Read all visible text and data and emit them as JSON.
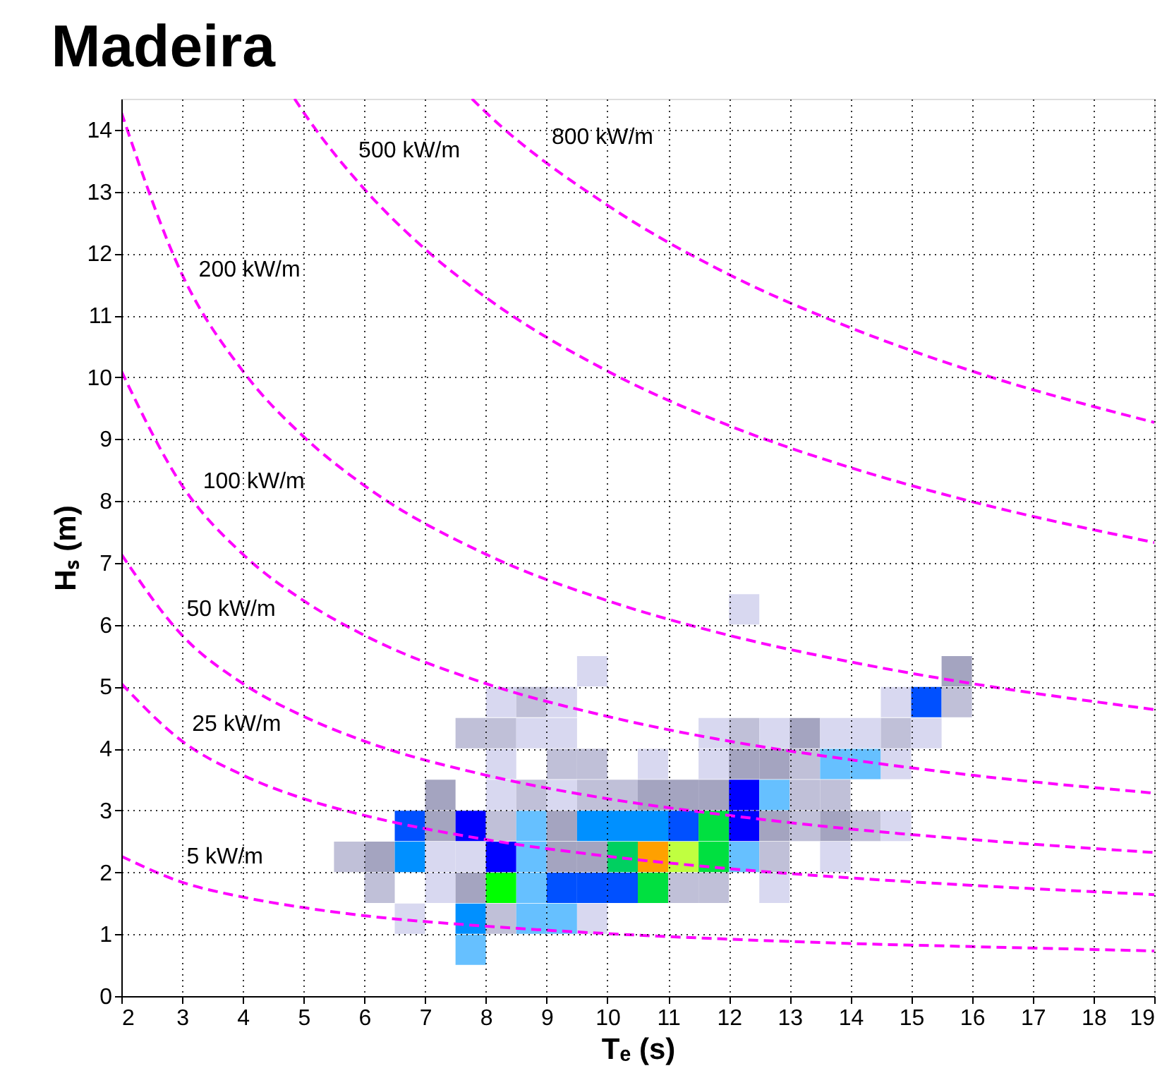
{
  "chart_data": {
    "type": "scatter",
    "title": "Madeira",
    "xlabel": "Tₑ (s)",
    "ylabel": "Hₛ (m)",
    "xlim": [
      2,
      19
    ],
    "ylim": [
      0,
      14.5
    ],
    "xticks": [
      2,
      3,
      4,
      5,
      6,
      7,
      8,
      9,
      10,
      11,
      12,
      13,
      14,
      15,
      16,
      17,
      18,
      19
    ],
    "yticks": [
      0,
      1,
      2,
      3,
      4,
      5,
      6,
      7,
      8,
      9,
      10,
      11,
      12,
      13,
      14
    ],
    "grid": true,
    "annotations": [
      {
        "text": "800 kW/m",
        "x": 8.99,
        "y": 13.47
      },
      {
        "text": "500 kW/m",
        "x": 5.81,
        "y": 13.26
      },
      {
        "text": "200 kW/m",
        "x": 3.18,
        "y": 11.33
      },
      {
        "text": "100 kW/m",
        "x": 3.25,
        "y": 7.91
      },
      {
        "text": "50 kW/m",
        "x": 2.98,
        "y": 5.85
      },
      {
        "text": "25 kW/m",
        "x": 3.07,
        "y": 3.99
      },
      {
        "text": "5 kW/m",
        "x": 2.98,
        "y": 1.85
      }
    ],
    "series": [
      {
        "type": "scatter",
        "marker": "square",
        "x": [
          12.25,
          9.75,
          15.75,
          8.25,
          8.75,
          9.25,
          14.75,
          15.25,
          15.75,
          7.75,
          8.25,
          8.75,
          9.25,
          11.75,
          12.25,
          12.75,
          13.25,
          13.75,
          14.25,
          14.75,
          15.25,
          8.25,
          9.25,
          9.75,
          10.75,
          11.75,
          12.25,
          12.75,
          13.25,
          13.75,
          14.25,
          14.75,
          7.25,
          8.25,
          8.75,
          9.25,
          9.75,
          10.25,
          10.75,
          11.25,
          11.75,
          12.25,
          12.75,
          13.25,
          13.75,
          6.75,
          7.25,
          7.75,
          8.25,
          8.75,
          9.25,
          9.75,
          10.25,
          10.75,
          11.25,
          11.75,
          12.25,
          12.75,
          13.25,
          13.75,
          14.25,
          14.75,
          5.75,
          6.25,
          6.75,
          7.25,
          7.75,
          8.25,
          8.75,
          9.25,
          9.75,
          10.25,
          10.75,
          11.25,
          11.75,
          12.25,
          12.75,
          13.75,
          6.25,
          7.25,
          7.75,
          8.25,
          8.75,
          9.25,
          9.75,
          10.25,
          10.75,
          11.25,
          11.75,
          12.75,
          6.75,
          7.75,
          8.25,
          8.75,
          9.25,
          9.75,
          7.75
        ],
        "values": [
          6.25,
          5.25,
          5.25,
          4.75,
          4.75,
          4.75,
          4.75,
          4.75,
          4.75,
          4.25,
          4.25,
          4.25,
          4.25,
          4.25,
          4.25,
          4.25,
          4.25,
          4.25,
          4.25,
          4.25,
          4.25,
          3.75,
          3.75,
          3.75,
          3.75,
          3.75,
          3.75,
          3.75,
          3.75,
          3.75,
          3.75,
          3.75,
          3.25,
          3.25,
          3.25,
          3.25,
          3.25,
          3.25,
          3.25,
          3.25,
          3.25,
          3.25,
          3.25,
          3.25,
          3.25,
          2.75,
          2.75,
          2.75,
          2.75,
          2.75,
          2.75,
          2.75,
          2.75,
          2.75,
          2.75,
          2.75,
          2.75,
          2.75,
          2.75,
          2.75,
          2.75,
          2.75,
          2.25,
          2.25,
          2.25,
          2.25,
          2.25,
          2.25,
          2.25,
          2.25,
          2.25,
          2.25,
          2.25,
          2.25,
          2.25,
          2.25,
          2.25,
          2.25,
          1.75,
          1.75,
          1.75,
          1.75,
          1.75,
          1.75,
          1.75,
          1.75,
          1.75,
          1.75,
          1.75,
          1.75,
          1.25,
          1.25,
          1.25,
          1.25,
          1.25,
          1.25,
          0.75
        ],
        "colors": [
          "#d8d8f0",
          "#d8d8f0",
          "#a4a4c0",
          "#d8d8f0",
          "#c0c0d8",
          "#d8d8f0",
          "#d8d8f0",
          "#0050ff",
          "#c0c0d8",
          "#c0c0d8",
          "#c0c0d8",
          "#d8d8f0",
          "#d8d8f0",
          "#d8d8f0",
          "#c0c0d8",
          "#d8d8f0",
          "#a4a4c0",
          "#d8d8f0",
          "#d8d8f0",
          "#c0c0d8",
          "#d8d8f0",
          "#d8d8f0",
          "#c0c0d8",
          "#c0c0d8",
          "#d8d8f0",
          "#d8d8f0",
          "#a4a4c0",
          "#a4a4c0",
          "#c0c0d8",
          "#66c0ff",
          "#66c0ff",
          "#d8d8f0",
          "#a4a4c0",
          "#d8d8f0",
          "#c0c0d8",
          "#d8d8f0",
          "#c0c0d8",
          "#c0c0d8",
          "#a4a4c0",
          "#a4a4c0",
          "#a4a4c0",
          "#0000ff",
          "#66c0ff",
          "#c0c0d8",
          "#c0c0d8",
          "#0050ff",
          "#a4a4c0",
          "#0000ff",
          "#c0c0d8",
          "#66c0ff",
          "#a4a4c0",
          "#0090ff",
          "#0090ff",
          "#0090ff",
          "#0050ff",
          "#00e040",
          "#0000ff",
          "#a4a4c0",
          "#c0c0d8",
          "#a4a4c0",
          "#c0c0d8",
          "#d8d8f0",
          "#c0c0d8",
          "#a4a4c0",
          "#0090ff",
          "#d8d8f0",
          "#d8d8f0",
          "#0000ff",
          "#66c0ff",
          "#a4a4c0",
          "#a4a4c0",
          "#00d060",
          "#ffa000",
          "#c0ff40",
          "#00e040",
          "#66c0ff",
          "#c0c0d8",
          "#d8d8f0",
          "#c0c0d8",
          "#d8d8f0",
          "#a4a4c0",
          "#00ff00",
          "#66c0ff",
          "#0050ff",
          "#0050ff",
          "#0050ff",
          "#00e040",
          "#c0c0d8",
          "#c0c0d8",
          "#d8d8f0",
          "#d8d8f0",
          "#0090ff",
          "#c0c0d8",
          "#66c0ff",
          "#66c0ff",
          "#d8d8f0",
          "#66c0ff"
        ]
      },
      {
        "type": "line",
        "color": "#ff00ff",
        "line_style": "dashed",
        "marker": "none",
        "x": [
          2,
          3,
          4,
          5,
          6,
          8,
          10,
          12,
          14,
          16,
          19
        ],
        "values": [
          2.26,
          1.84,
          1.6,
          1.43,
          1.3,
          1.13,
          1.01,
          0.92,
          0.85,
          0.8,
          0.73
        ]
      },
      {
        "type": "line",
        "color": "#ff00ff",
        "line_style": "dashed",
        "marker": "none",
        "x": [
          2,
          3,
          4,
          5,
          6,
          8,
          10,
          12,
          14,
          16,
          19
        ],
        "values": [
          5.05,
          4.12,
          3.57,
          3.19,
          2.92,
          2.53,
          2.26,
          2.06,
          1.91,
          1.79,
          1.64
        ]
      },
      {
        "type": "line",
        "color": "#ff00ff",
        "line_style": "dashed",
        "marker": "none",
        "x": [
          2,
          3,
          4,
          5,
          6,
          8,
          10,
          12,
          14,
          16,
          19
        ],
        "values": [
          7.14,
          5.83,
          5.05,
          4.52,
          4.12,
          3.57,
          3.19,
          2.92,
          2.7,
          2.53,
          2.32
        ]
      },
      {
        "type": "line",
        "color": "#ff00ff",
        "line_style": "dashed",
        "marker": "none",
        "x": [
          2,
          3,
          4,
          5,
          6,
          8,
          10,
          12,
          14,
          16,
          19
        ],
        "values": [
          10.1,
          8.25,
          7.14,
          6.39,
          5.83,
          5.05,
          4.52,
          4.12,
          3.82,
          3.57,
          3.28
        ]
      },
      {
        "type": "line",
        "color": "#ff00ff",
        "line_style": "dashed",
        "marker": "none",
        "x": [
          2,
          3,
          4,
          5,
          6,
          8,
          10,
          12,
          14,
          16,
          19
        ],
        "values": [
          14.28,
          11.66,
          10.1,
          9.04,
          8.25,
          7.14,
          6.39,
          5.83,
          5.4,
          5.05,
          4.63
        ]
      },
      {
        "type": "line",
        "color": "#ff00ff",
        "line_style": "dashed",
        "marker": "none",
        "x": [
          4.85,
          5,
          6,
          7,
          8,
          10,
          12,
          14,
          16,
          19
        ],
        "values": [
          14.5,
          14.28,
          13.04,
          12.07,
          11.29,
          10.1,
          9.22,
          8.54,
          7.99,
          7.33
        ]
      },
      {
        "type": "line",
        "color": "#ff00ff",
        "line_style": "dashed",
        "marker": "none",
        "x": [
          7.77,
          8,
          10,
          12,
          14,
          16,
          19
        ],
        "values": [
          14.5,
          14.28,
          12.78,
          11.66,
          10.8,
          10.1,
          9.27
        ]
      }
    ]
  }
}
